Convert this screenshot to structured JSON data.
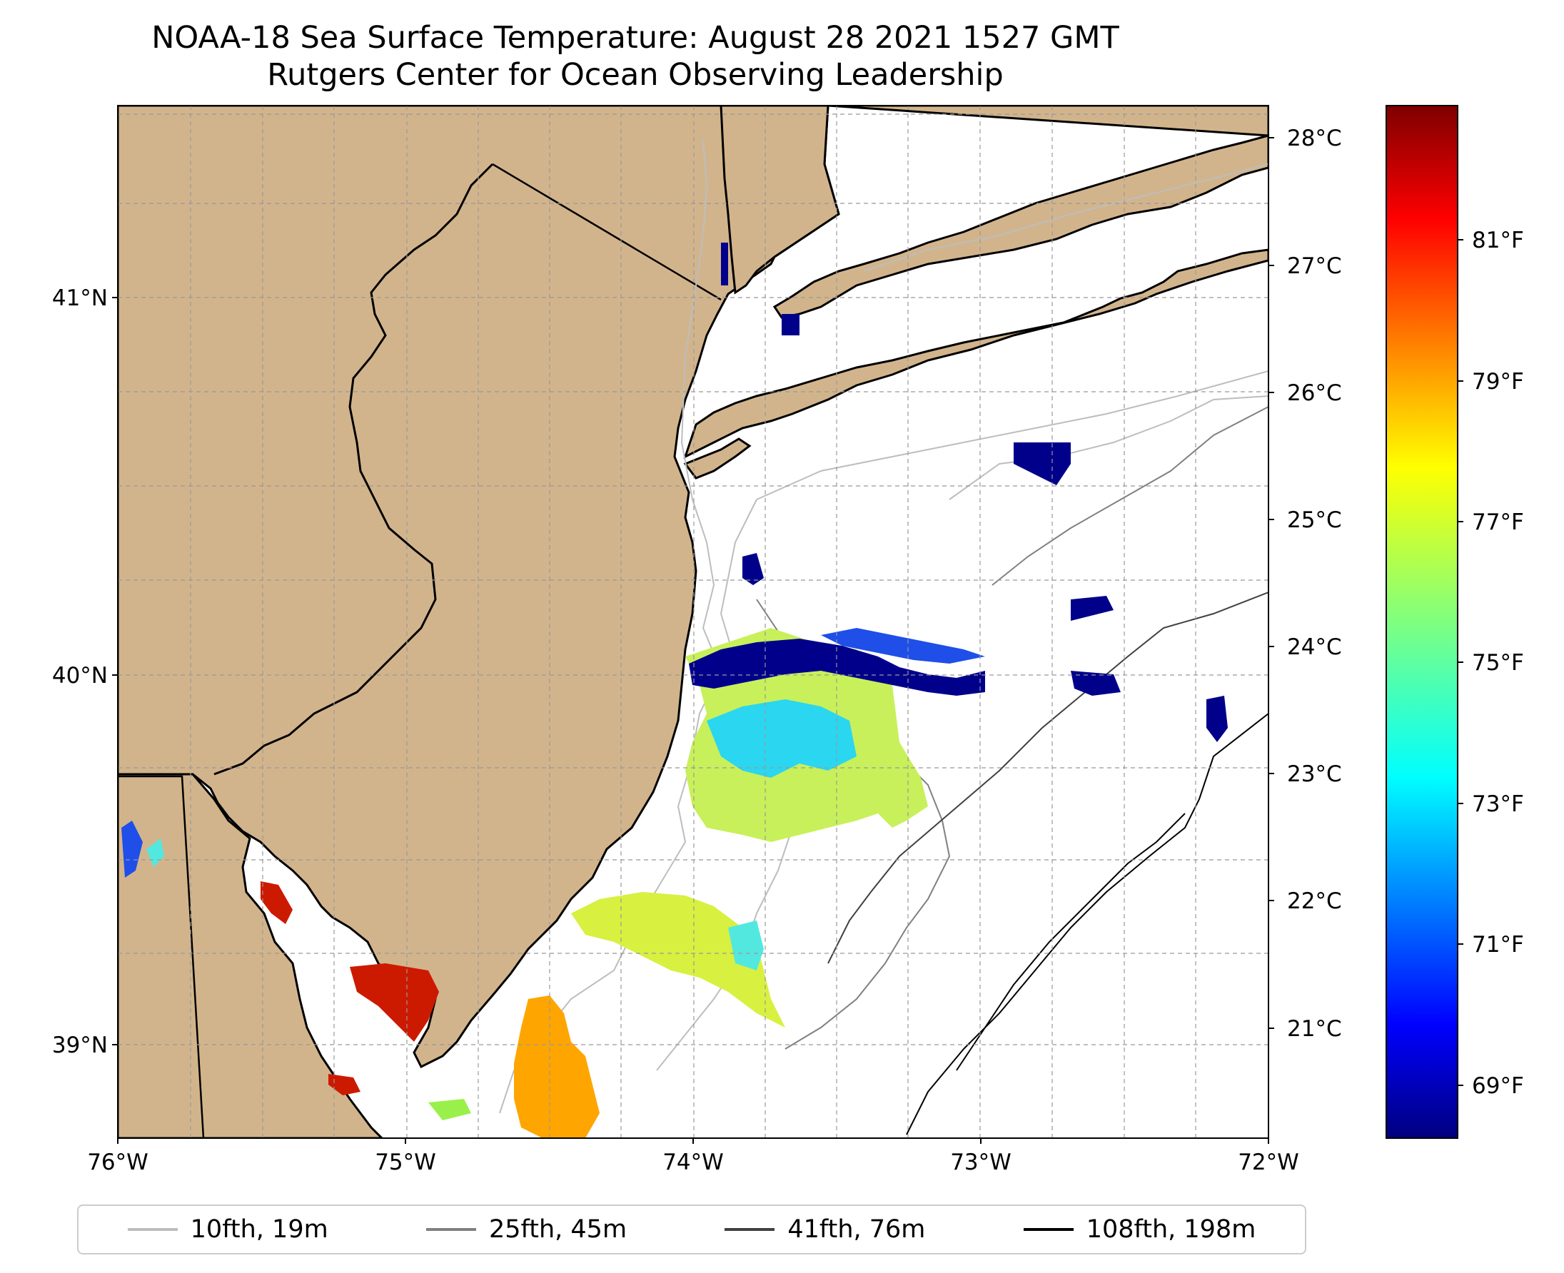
{
  "title": "NOAA-18 Sea Surface Temperature: August 28 2021 1527 GMT",
  "subtitle": "Rutgers Center for Ocean Observing Leadership",
  "map": {
    "extent": {
      "lon": [
        -76,
        -72
      ],
      "lat": [
        38.7,
        41.5
      ]
    },
    "x_ticks": [
      {
        "lon": -76,
        "label": "76°W"
      },
      {
        "lon": -75,
        "label": "75°W"
      },
      {
        "lon": -74,
        "label": "74°W"
      },
      {
        "lon": -73,
        "label": "73°W"
      },
      {
        "lon": -72,
        "label": "72°W"
      }
    ],
    "y_ticks": [
      {
        "lat": 41,
        "label": "41°N"
      },
      {
        "lat": 40,
        "label": "40°N"
      },
      {
        "lat": 39,
        "label": "39°N"
      }
    ],
    "grid": true,
    "land_color": "#D2B48C"
  },
  "colorbar": {
    "colormap": "jet",
    "celsius_ticks": [
      "28°C",
      "27°C",
      "26°C",
      "25°C",
      "24°C",
      "23°C",
      "22°C",
      "21°C"
    ],
    "fahrenheit_ticks": [
      "81°F",
      "79°F",
      "77°F",
      "75°F",
      "73°F",
      "71°F",
      "69°F"
    ]
  },
  "legend": [
    {
      "label": "10fth, 19m",
      "color": "#bdbdbd"
    },
    {
      "label": "25fth, 45m",
      "color": "#808080"
    },
    {
      "label": "41fth, 76m",
      "color": "#404040"
    },
    {
      "label": "108fth, 198m",
      "color": "#000000"
    }
  ]
}
